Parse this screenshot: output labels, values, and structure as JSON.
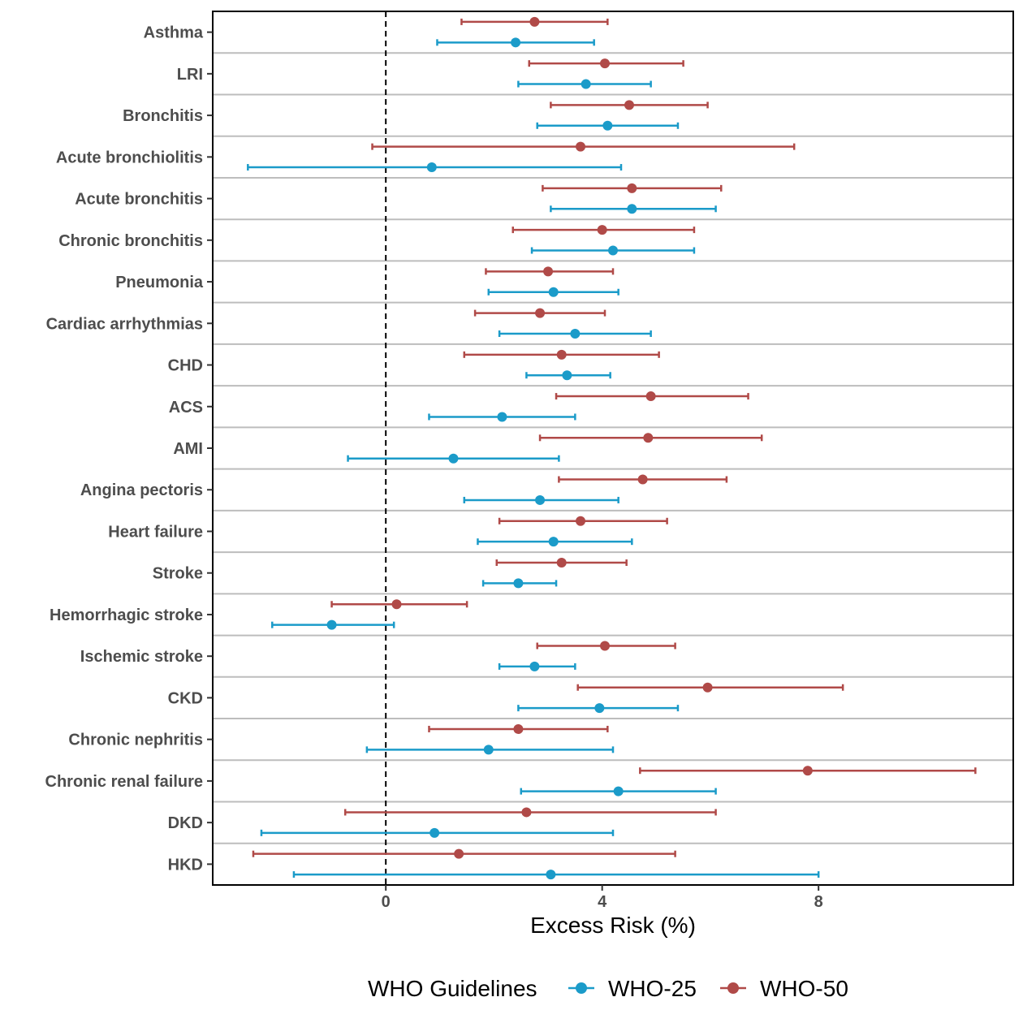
{
  "chart_data": {
    "type": "forest",
    "xlabel": "Excess Risk (%)",
    "ylabel": "",
    "xlim": [
      -3.2,
      11.6
    ],
    "xticks": [
      0,
      4,
      8
    ],
    "reference_line": 0,
    "grid": "horizontal separators",
    "legend_title": "WHO Guidelines",
    "legend_position": "bottom",
    "categories": [
      "Asthma",
      "LRI",
      "Bronchitis",
      "Acute bronchiolitis",
      "Acute bronchitis",
      "Chronic bronchitis",
      "Pneumonia",
      "Cardiac arrhythmias",
      "CHD",
      "ACS",
      "AMI",
      "Angina pectoris",
      "Heart failure",
      "Stroke",
      "Hemorrhagic stroke",
      "Ischemic stroke",
      "CKD",
      "Chronic nephritis",
      "Chronic renal failure",
      "DKD",
      "HKD"
    ],
    "series": [
      {
        "name": "WHO-50",
        "color": "#b04a48",
        "values": [
          [
            1.4,
            2.75,
            4.1
          ],
          [
            2.65,
            4.05,
            5.5
          ],
          [
            3.05,
            4.5,
            5.95
          ],
          [
            -0.25,
            3.6,
            7.55
          ],
          [
            2.9,
            4.55,
            6.2
          ],
          [
            2.35,
            4.0,
            5.7
          ],
          [
            1.85,
            3.0,
            4.2
          ],
          [
            1.65,
            2.85,
            4.05
          ],
          [
            1.45,
            3.25,
            5.05
          ],
          [
            3.15,
            4.9,
            6.7
          ],
          [
            2.85,
            4.85,
            6.95
          ],
          [
            3.2,
            4.75,
            6.3
          ],
          [
            2.1,
            3.6,
            5.2
          ],
          [
            2.05,
            3.25,
            4.45
          ],
          [
            -1.0,
            0.2,
            1.5
          ],
          [
            2.8,
            4.05,
            5.35
          ],
          [
            3.55,
            5.95,
            8.45
          ],
          [
            0.8,
            2.45,
            4.1
          ],
          [
            4.7,
            7.8,
            10.9
          ],
          [
            -0.75,
            2.6,
            6.1
          ],
          [
            -2.45,
            1.35,
            5.35
          ]
        ]
      },
      {
        "name": "WHO-25",
        "color": "#1b9bc9",
        "values": [
          [
            0.95,
            2.4,
            3.85
          ],
          [
            2.45,
            3.7,
            4.9
          ],
          [
            2.8,
            4.1,
            5.4
          ],
          [
            -2.55,
            0.85,
            4.35
          ],
          [
            3.05,
            4.55,
            6.1
          ],
          [
            2.7,
            4.2,
            5.7
          ],
          [
            1.9,
            3.1,
            4.3
          ],
          [
            2.1,
            3.5,
            4.9
          ],
          [
            2.6,
            3.35,
            4.15
          ],
          [
            0.8,
            2.15,
            3.5
          ],
          [
            -0.7,
            1.25,
            3.2
          ],
          [
            1.45,
            2.85,
            4.3
          ],
          [
            1.7,
            3.1,
            4.55
          ],
          [
            1.8,
            2.45,
            3.15
          ],
          [
            -2.1,
            -1.0,
            0.15
          ],
          [
            2.1,
            2.75,
            3.5
          ],
          [
            2.45,
            3.95,
            5.4
          ],
          [
            -0.35,
            1.9,
            4.2
          ],
          [
            2.5,
            4.3,
            6.1
          ],
          [
            -2.3,
            0.9,
            4.2
          ],
          [
            -1.7,
            3.05,
            8.0
          ]
        ]
      }
    ]
  }
}
